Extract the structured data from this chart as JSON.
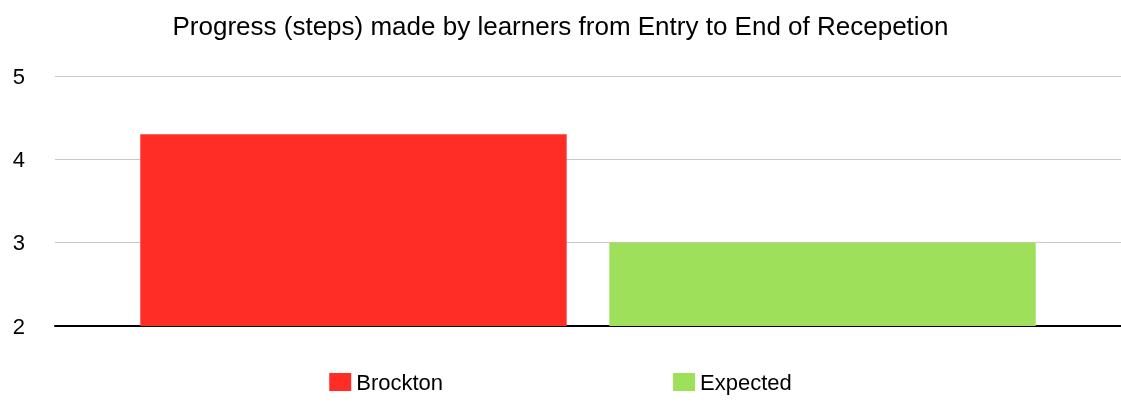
{
  "chart_data": {
    "type": "bar",
    "title": "Progress (steps) made by learners from Entry to End of Recepetion",
    "categories": [
      null
    ],
    "series": [
      {
        "name": "Brockton",
        "color": "#ff2d25",
        "values": [
          4.3
        ]
      },
      {
        "name": "Expected",
        "color": "#9ee05a",
        "values": [
          3
        ]
      }
    ],
    "ylim": [
      2,
      5
    ],
    "yticks": [
      2,
      3,
      4,
      5
    ],
    "grid": "y",
    "legend": "bottom"
  }
}
